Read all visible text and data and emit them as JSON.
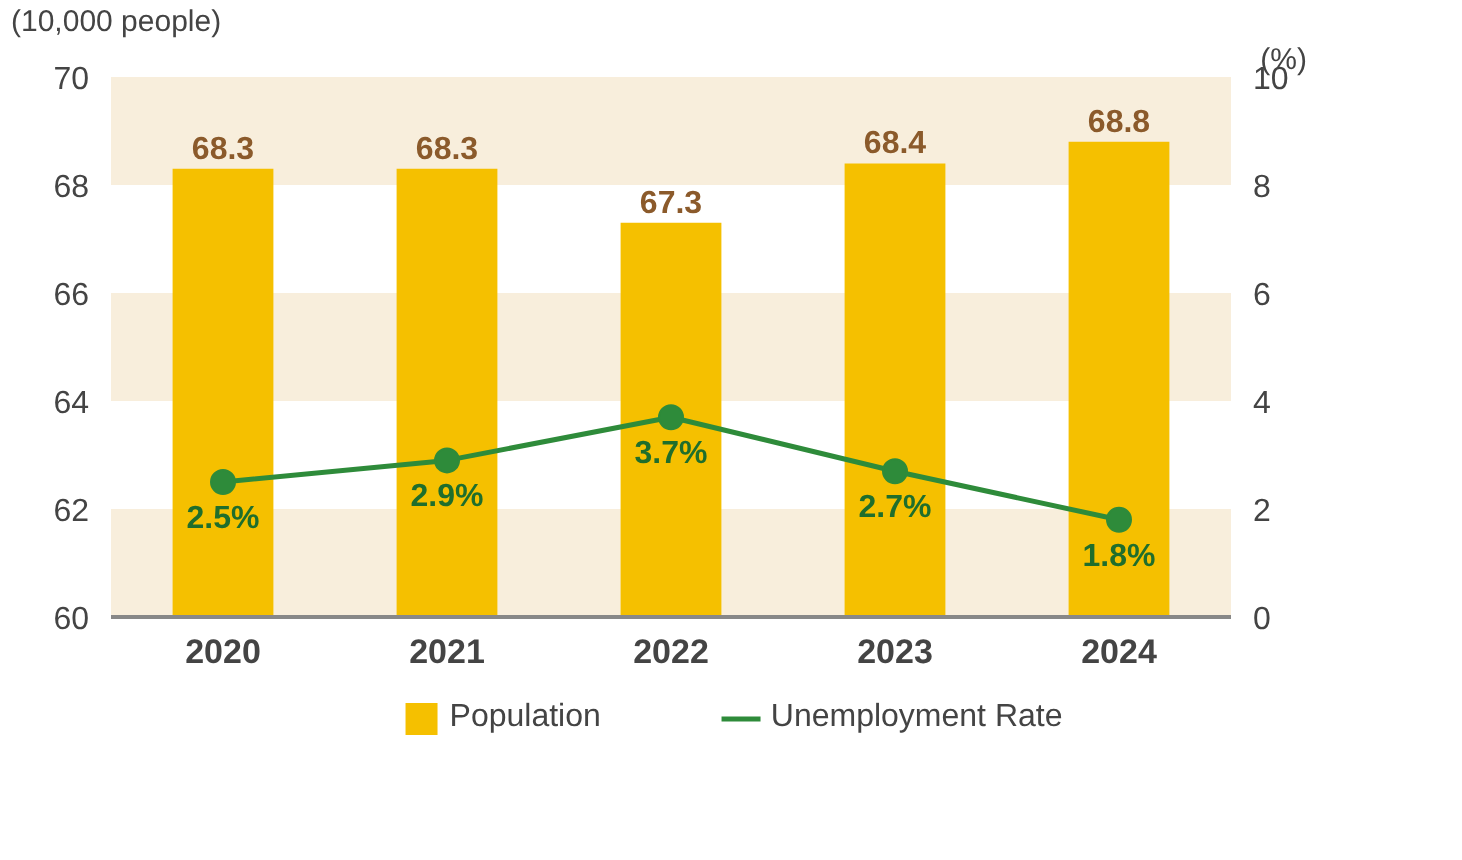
{
  "chart_data": {
    "type": "bar",
    "ylabel": "(10,000 people)",
    "y2label": "(%)",
    "categories": [
      "2020",
      "2021",
      "2022",
      "2023",
      "2024"
    ],
    "series": [
      {
        "name": "Population",
        "color": "#f5c000",
        "values": [
          68.3,
          68.3,
          67.3,
          68.4,
          68.8
        ],
        "value_labels": [
          "68.3",
          "68.3",
          "67.3",
          "68.4",
          "68.8"
        ]
      },
      {
        "name": "Unemployment Rate",
        "type": "line",
        "axis": "y2",
        "color": "#2e8b3a",
        "marker": "circle",
        "values": [
          2.5,
          2.9,
          3.7,
          2.7,
          1.8
        ],
        "value_labels": [
          "2.5%",
          "2.9%",
          "3.7%",
          "2.7%",
          "1.8%"
        ]
      }
    ],
    "ylim": [
      60,
      70
    ],
    "yticks": [
      60,
      62,
      64,
      66,
      68,
      70
    ],
    "y2lim": [
      0,
      10
    ],
    "y2ticks": [
      0,
      2,
      4,
      6,
      8,
      10
    ],
    "bands": [
      {
        "axis": "y",
        "from": 60,
        "to": 62,
        "color": "#f8eedc"
      },
      {
        "axis": "y",
        "from": 64,
        "to": 66,
        "color": "#f8eedc"
      },
      {
        "axis": "y",
        "from": 68,
        "to": 70,
        "color": "#f8eedc"
      }
    ],
    "grid": false,
    "legend": "bottom"
  }
}
